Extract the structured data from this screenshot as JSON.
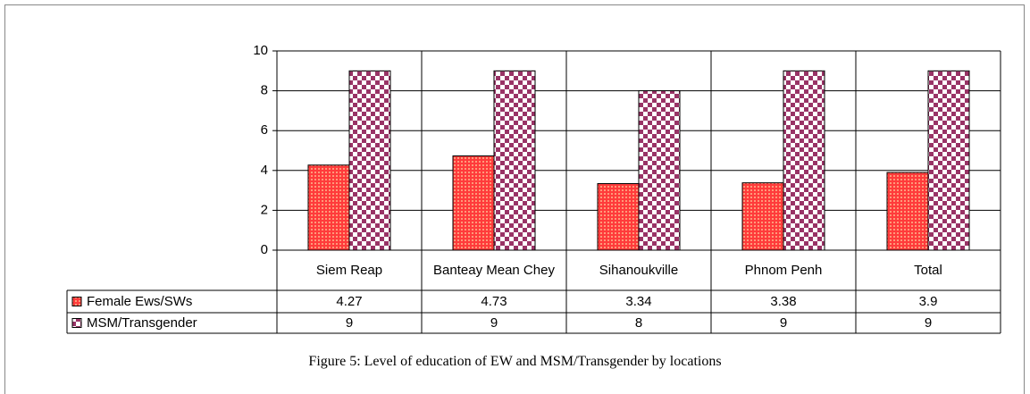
{
  "chart_data": {
    "type": "bar",
    "caption": "Figure 5: Level of education of EW and MSM/Transgender by locations",
    "categories": [
      "Siem Reap",
      "Banteay Mean Chey",
      "Sihanoukville",
      "Phnom Penh",
      "Total"
    ],
    "series": [
      {
        "name": "Female Ews/SWs",
        "color": "#ff3b3b",
        "values": [
          4.27,
          4.73,
          3.34,
          3.38,
          3.9
        ]
      },
      {
        "name": "MSM/Transgender",
        "color": "#993366",
        "values": [
          9,
          9,
          8,
          9,
          9
        ]
      }
    ],
    "ylim": [
      0,
      10
    ],
    "yticks": [
      0,
      2,
      4,
      6,
      8,
      10
    ],
    "grid": true
  }
}
